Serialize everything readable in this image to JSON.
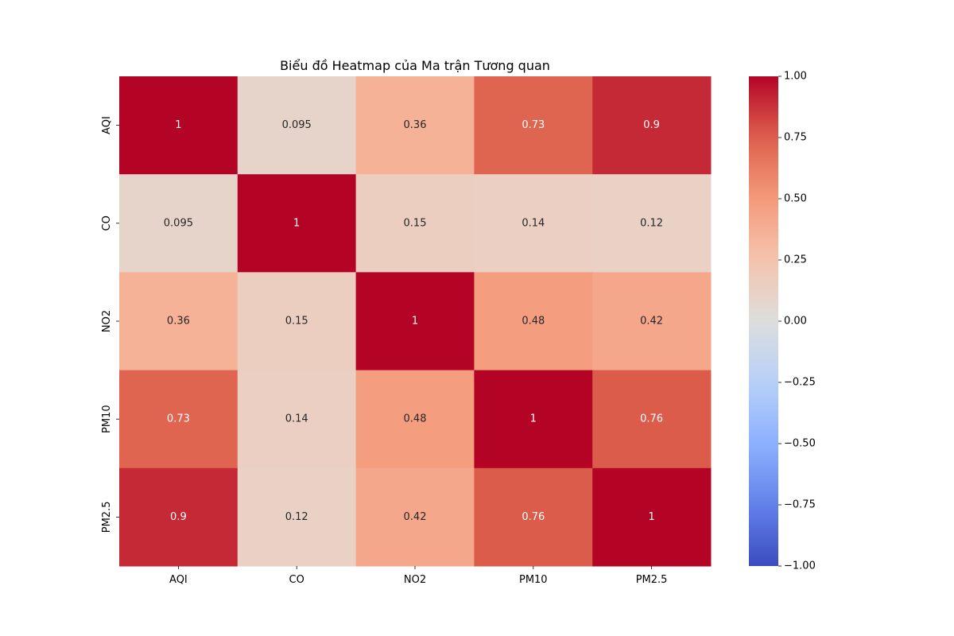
{
  "chart_data": {
    "type": "heatmap",
    "title": "Biểu đồ Heatmap của Ma trận Tương quan",
    "x_labels": [
      "AQI",
      "CO",
      "NO2",
      "PM10",
      "PM2.5"
    ],
    "y_labels": [
      "AQI",
      "CO",
      "NO2",
      "PM10",
      "PM2.5"
    ],
    "values": [
      [
        1,
        0.095,
        0.36,
        0.73,
        0.9
      ],
      [
        0.095,
        1,
        0.15,
        0.14,
        0.12
      ],
      [
        0.36,
        0.15,
        1,
        0.48,
        0.42
      ],
      [
        0.73,
        0.14,
        0.48,
        1,
        0.76
      ],
      [
        0.9,
        0.12,
        0.42,
        0.76,
        1
      ]
    ],
    "value_labels": [
      [
        "1",
        "0.095",
        "0.36",
        "0.73",
        "0.9"
      ],
      [
        "0.095",
        "1",
        "0.15",
        "0.14",
        "0.12"
      ],
      [
        "0.36",
        "0.15",
        "1",
        "0.48",
        "0.42"
      ],
      [
        "0.73",
        "0.14",
        "0.48",
        "1",
        "0.76"
      ],
      [
        "0.9",
        "0.12",
        "0.42",
        "0.76",
        "1"
      ]
    ],
    "colormap": "coolwarm",
    "vmin": -1.0,
    "vmax": 1.0,
    "colorbar_ticks": [
      1.0,
      0.75,
      0.5,
      0.25,
      0.0,
      -0.25,
      -0.5,
      -0.75,
      -1.0
    ],
    "colorbar_tick_labels": [
      "1.00",
      "0.75",
      "0.50",
      "0.25",
      "0.00",
      "−0.25",
      "−0.50",
      "−0.75",
      "−1.00"
    ],
    "colors": {
      "low": "#3b4cc0",
      "mid": "#dddddd",
      "high": "#b40426"
    }
  }
}
